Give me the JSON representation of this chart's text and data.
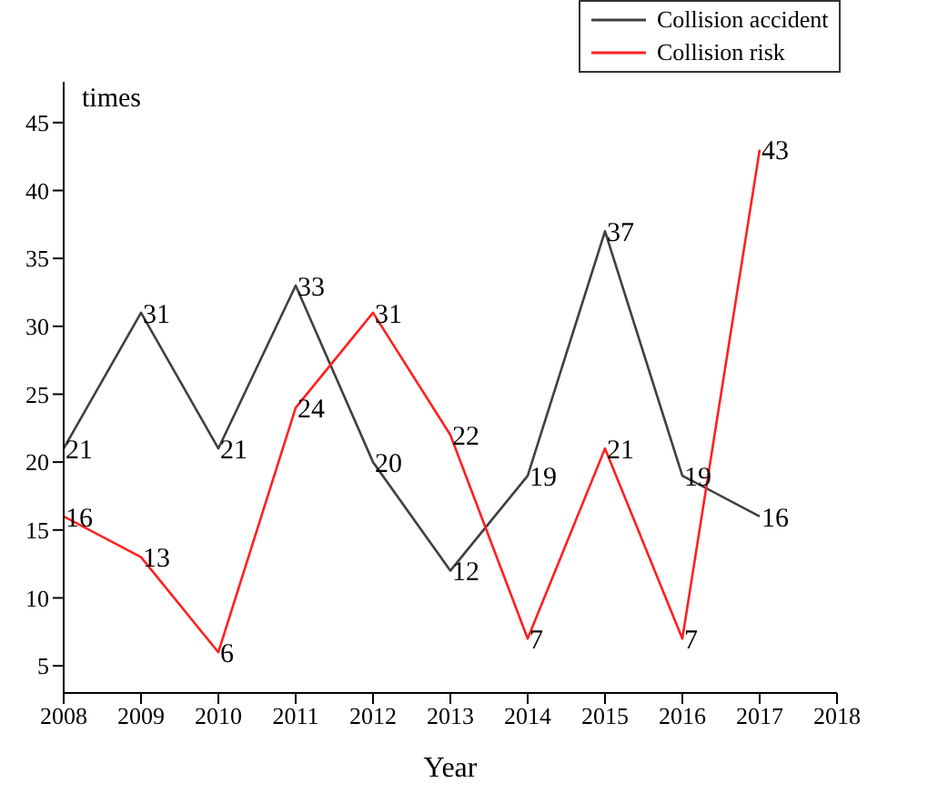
{
  "chart_data": {
    "type": "line",
    "xlabel": "Year",
    "ylabel": "times",
    "x": [
      2008,
      2009,
      2010,
      2011,
      2012,
      2013,
      2014,
      2015,
      2016,
      2017
    ],
    "series": [
      {
        "name": "Collision accident",
        "color": "#404040",
        "values": [
          21,
          31,
          21,
          33,
          20,
          12,
          19,
          37,
          19,
          16
        ]
      },
      {
        "name": "Collision risk",
        "color": "#ff2020",
        "values": [
          16,
          13,
          6,
          24,
          31,
          22,
          7,
          21,
          7,
          43
        ]
      }
    ],
    "xlim": [
      2008,
      2018
    ],
    "xticks": [
      2008,
      2009,
      2010,
      2011,
      2012,
      2013,
      2014,
      2015,
      2016,
      2017,
      2018
    ],
    "ylim": [
      3,
      48
    ],
    "yticks": [
      5,
      10,
      15,
      20,
      25,
      30,
      35,
      40,
      45
    ],
    "data_labels": true,
    "marker": "none",
    "line_style": "solid",
    "grid": false,
    "legend": "top right"
  }
}
